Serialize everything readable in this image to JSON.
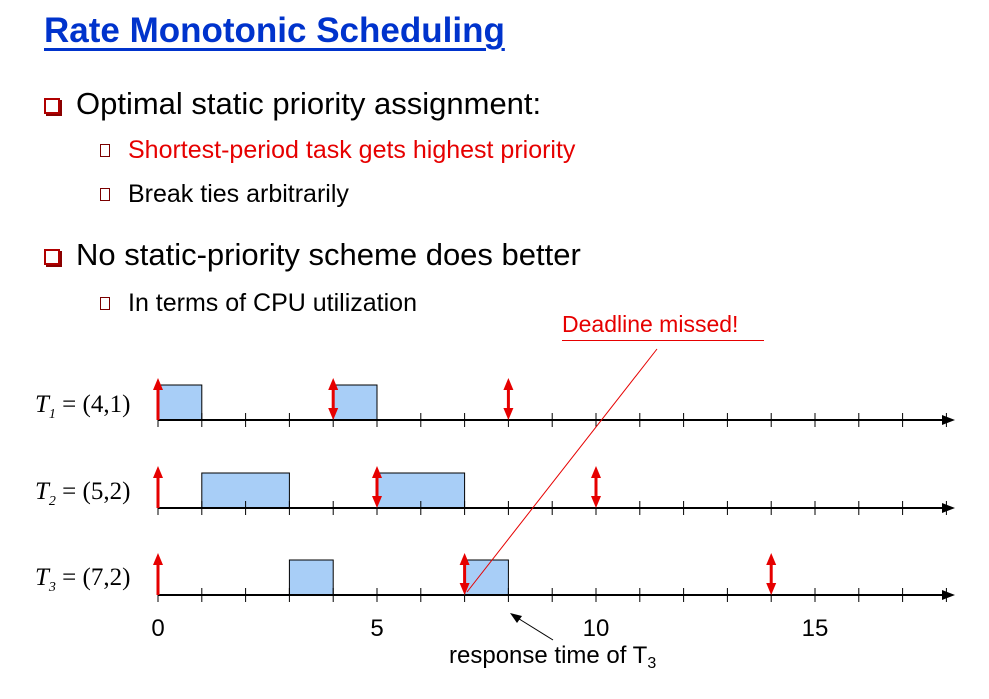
{
  "title": "Rate Monotonic Scheduling",
  "bullets": [
    {
      "text": "Optimal static priority assignment:",
      "sub": [
        {
          "text": "Shortest-period task gets highest priority",
          "color": "#e60000"
        },
        {
          "text": "Break ties arbitrarily",
          "color": "#000000"
        }
      ]
    },
    {
      "text": "No static-priority scheme does better",
      "sub": [
        {
          "text": "In terms of CPU utilization",
          "color": "#000000"
        }
      ]
    }
  ],
  "annotation": "Deadline missed!",
  "response_label": "response time of T",
  "response_sub": "3",
  "colors": {
    "title": "#0033cc",
    "arrow": "#e60000",
    "block": "#a8cef7",
    "annotation": "#e60000"
  },
  "chart_data": {
    "type": "timeline",
    "x_ticks": [
      0,
      5,
      10,
      15
    ],
    "x_range": [
      0,
      18
    ],
    "tasks": [
      {
        "name": "T",
        "sub": "1",
        "params": "= (4,1)",
        "blocks": [
          [
            0,
            1
          ],
          [
            4,
            5
          ]
        ],
        "arrows": [
          0,
          4,
          8
        ]
      },
      {
        "name": "T",
        "sub": "2",
        "params": "= (5,2)",
        "blocks": [
          [
            1,
            3
          ],
          [
            5,
            7
          ]
        ],
        "arrows": [
          0,
          5,
          10
        ]
      },
      {
        "name": "T",
        "sub": "3",
        "params": "= (7,2)",
        "blocks": [
          [
            3,
            4
          ],
          [
            7,
            8
          ]
        ],
        "arrows": [
          0,
          7,
          14
        ]
      }
    ]
  }
}
